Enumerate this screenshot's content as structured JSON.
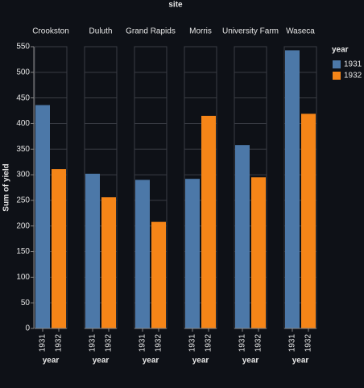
{
  "chart_data": {
    "type": "bar",
    "facet_label": "site",
    "y_label": "Sum of yield",
    "x_label": "year",
    "legend_title": "year",
    "categories": [
      "Crookston",
      "Duluth",
      "Grand Rapids",
      "Morris",
      "University Farm",
      "Waseca"
    ],
    "series": [
      {
        "name": "1931",
        "color": "#4c78a8",
        "values": [
          436,
          302,
          290,
          292,
          358,
          543
        ]
      },
      {
        "name": "1932",
        "color": "#f58518",
        "values": [
          311,
          256,
          208,
          415,
          295,
          419
        ]
      }
    ],
    "ylim": [
      0,
      550
    ],
    "yticks": [
      0,
      50,
      100,
      150,
      200,
      250,
      300,
      350,
      400,
      450,
      500,
      550
    ],
    "grid": true
  }
}
